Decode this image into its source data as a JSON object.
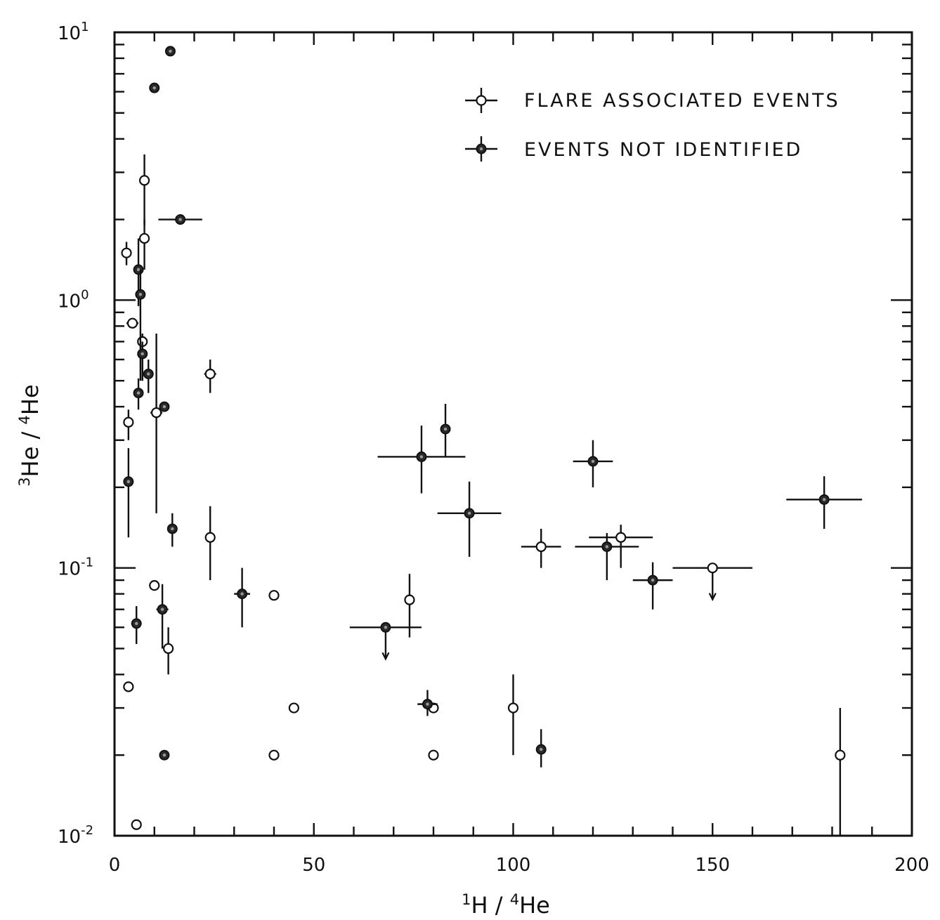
{
  "chart_data": {
    "type": "scatter",
    "xlabel": {
      "sup": "1",
      "base": "H / ",
      "sup2": "4",
      "tail": "He"
    },
    "ylabel": {
      "sup": "3",
      "base": "He / ",
      "sup2": "4",
      "tail": "He"
    },
    "xlim": [
      0,
      200
    ],
    "ylim": [
      0.01,
      10
    ],
    "yscale": "log",
    "grid": false,
    "legend_position": "top-right",
    "x_ticks": [
      "0",
      "50",
      "100",
      "150",
      "200"
    ],
    "y_ticks": [
      {
        "base": "10",
        "exp": "-2"
      },
      {
        "base": "10",
        "exp": "-1"
      },
      {
        "base": "10",
        "exp": "0"
      },
      {
        "base": "10",
        "exp": "1"
      }
    ],
    "series": [
      {
        "name": "FLARE ASSOCIATED EVENTS",
        "marker": "open",
        "points": [
          {
            "x": 3,
            "y": 1.5,
            "xerr": 1,
            "ylo": 1.35,
            "yhi": 1.65
          },
          {
            "x": 4.5,
            "y": 0.82,
            "xerr": 1.5
          },
          {
            "x": 7,
            "y": 0.7,
            "ylo": 0.5,
            "yhi": 0.75
          },
          {
            "x": 7.5,
            "y": 2.8,
            "ylo": 1.9,
            "yhi": 3.5
          },
          {
            "x": 7.5,
            "y": 1.7,
            "ylo": 1.3,
            "yhi": 2.0
          },
          {
            "x": 3.5,
            "y": 0.35,
            "ylo": 0.3,
            "yhi": 0.39
          },
          {
            "x": 10.5,
            "y": 0.38,
            "xerr": 1.5,
            "ylo": 0.16,
            "yhi": 0.75
          },
          {
            "x": 24,
            "y": 0.53,
            "xerr": 1.5,
            "ylo": 0.45,
            "yhi": 0.6
          },
          {
            "x": 24,
            "y": 0.13,
            "ylo": 0.09,
            "yhi": 0.17
          },
          {
            "x": 10,
            "y": 0.086
          },
          {
            "x": 13.5,
            "y": 0.05,
            "ylo": 0.04,
            "yhi": 0.06
          },
          {
            "x": 3.5,
            "y": 0.036
          },
          {
            "x": 5.5,
            "y": 0.011
          },
          {
            "x": 40,
            "y": 0.079
          },
          {
            "x": 40,
            "y": 0.02
          },
          {
            "x": 45,
            "y": 0.03
          },
          {
            "x": 74,
            "y": 0.076,
            "ylo": 0.055,
            "yhi": 0.095
          },
          {
            "x": 80,
            "y": 0.03
          },
          {
            "x": 80,
            "y": 0.02
          },
          {
            "x": 100,
            "y": 0.03,
            "ylo": 0.02,
            "yhi": 0.04
          },
          {
            "x": 107,
            "y": 0.12,
            "xerr": 5,
            "ylo": 0.1,
            "yhi": 0.14
          },
          {
            "x": 127,
            "y": 0.13,
            "xerr": 8,
            "ylo": 0.1,
            "yhi": 0.145
          },
          {
            "x": 150,
            "y": 0.1,
            "xerr": 10,
            "upper_limit": true
          },
          {
            "x": 182,
            "y": 0.02,
            "ylo": 0.01,
            "yhi": 0.03
          }
        ]
      },
      {
        "name": "EVENTS NOT IDENTIFIED",
        "marker": "filled",
        "points": [
          {
            "x": 14,
            "y": 8.5
          },
          {
            "x": 10,
            "y": 6.2
          },
          {
            "x": 16.5,
            "y": 2.0,
            "xerr": 5.5
          },
          {
            "x": 6,
            "y": 1.3,
            "ylo": 0.95,
            "yhi": 1.7
          },
          {
            "x": 6.5,
            "y": 1.05,
            "ylo": 0.5,
            "yhi": 1.3
          },
          {
            "x": 7,
            "y": 0.63,
            "ylo": 0.5,
            "yhi": 0.7
          },
          {
            "x": 8.5,
            "y": 0.53,
            "xerr": 1,
            "ylo": 0.45,
            "yhi": 0.6
          },
          {
            "x": 6,
            "y": 0.45,
            "ylo": 0.39,
            "yhi": 0.51
          },
          {
            "x": 12.5,
            "y": 0.4,
            "xerr": 1
          },
          {
            "x": 3.5,
            "y": 0.21,
            "ylo": 0.13,
            "yhi": 0.28
          },
          {
            "x": 14.5,
            "y": 0.14,
            "ylo": 0.12,
            "yhi": 0.16
          },
          {
            "x": 12,
            "y": 0.07,
            "xerr": 1.5,
            "ylo": 0.05,
            "yhi": 0.087
          },
          {
            "x": 5.5,
            "y": 0.062,
            "ylo": 0.052,
            "yhi": 0.072
          },
          {
            "x": 12.5,
            "y": 0.02,
            "xerr": 1
          },
          {
            "x": 32,
            "y": 0.08,
            "xerr": 2,
            "ylo": 0.06,
            "yhi": 0.1
          },
          {
            "x": 68,
            "y": 0.06,
            "xerr": 9,
            "upper_limit": true
          },
          {
            "x": 77,
            "y": 0.26,
            "xerr": 11,
            "ylo": 0.19,
            "yhi": 0.34
          },
          {
            "x": 83,
            "y": 0.33,
            "ylo": 0.26,
            "yhi": 0.41
          },
          {
            "x": 89,
            "y": 0.16,
            "xerr": 8,
            "ylo": 0.11,
            "yhi": 0.21
          },
          {
            "x": 78.5,
            "y": 0.031,
            "xerr": 2.5,
            "ylo": 0.028,
            "yhi": 0.035
          },
          {
            "x": 107,
            "y": 0.021,
            "ylo": 0.018,
            "yhi": 0.025
          },
          {
            "x": 120,
            "y": 0.25,
            "xerr": 5,
            "ylo": 0.2,
            "yhi": 0.3
          },
          {
            "x": 123.5,
            "y": 0.12,
            "xerr": 8,
            "ylo": 0.09,
            "yhi": 0.135
          },
          {
            "x": 135,
            "y": 0.09,
            "xerr": 5,
            "ylo": 0.07,
            "yhi": 0.105
          },
          {
            "x": 178,
            "y": 0.18,
            "xerr": 9.5,
            "ylo": 0.14,
            "yhi": 0.22
          }
        ]
      }
    ]
  }
}
